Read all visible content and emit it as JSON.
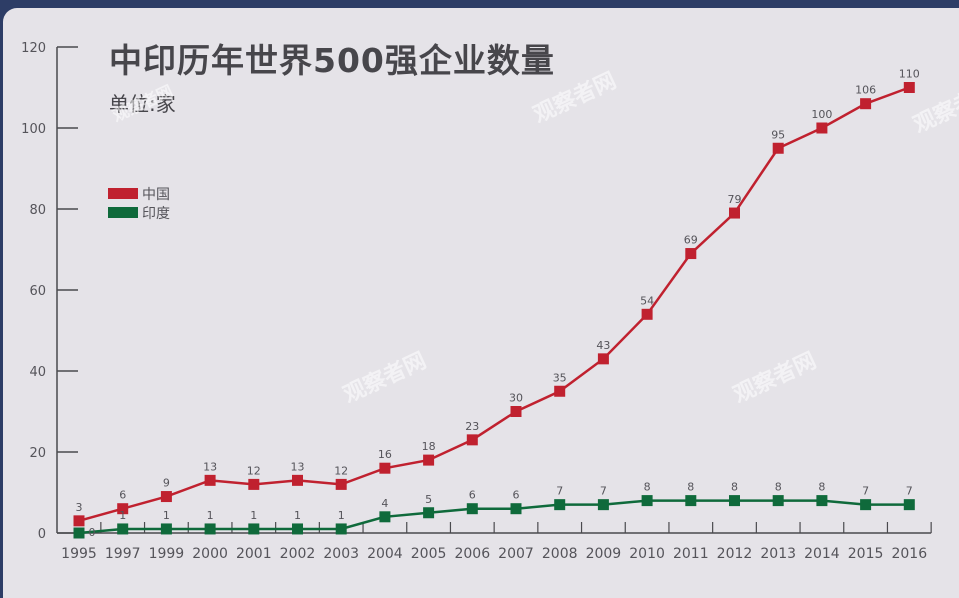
{
  "header": {
    "title": "中印历年世界500强企业数量",
    "subtitle": "单位:家"
  },
  "legend": [
    {
      "name": "中国",
      "color": "#c0212f"
    },
    {
      "name": "印度",
      "color": "#0f6a3b"
    }
  ],
  "watermark": "观察者网",
  "colors": {
    "background_border": "#2d3d66",
    "card": "#e5e3e8",
    "axis": "#4a4a4e",
    "china": "#c0212f",
    "india": "#0f6a3b"
  },
  "chart_data": {
    "type": "line",
    "title": "中印历年世界500强企业数量",
    "subtitle": "单位:家",
    "xlabel": "",
    "ylabel": "",
    "ylim": [
      0,
      120
    ],
    "yticks": [
      0,
      20,
      40,
      60,
      80,
      100,
      120
    ],
    "categories": [
      "1995",
      "1997",
      "1999",
      "2000",
      "2001",
      "2002",
      "2003",
      "2004",
      "2005",
      "2006",
      "2007",
      "2008",
      "2009",
      "2010",
      "2011",
      "2012",
      "2013",
      "2014",
      "2015",
      "2016"
    ],
    "series": [
      {
        "name": "中国",
        "color": "#c0212f",
        "values": [
          3,
          6,
          9,
          13,
          12,
          13,
          12,
          16,
          18,
          23,
          30,
          35,
          43,
          54,
          69,
          79,
          95,
          100,
          106,
          110
        ]
      },
      {
        "name": "印度",
        "color": "#0f6a3b",
        "values": [
          0,
          1,
          1,
          1,
          1,
          1,
          1,
          4,
          5,
          6,
          6,
          7,
          7,
          8,
          8,
          8,
          8,
          8,
          7,
          7
        ]
      }
    ],
    "legend_position": "upper-left",
    "grid": false,
    "data_labels": true
  }
}
